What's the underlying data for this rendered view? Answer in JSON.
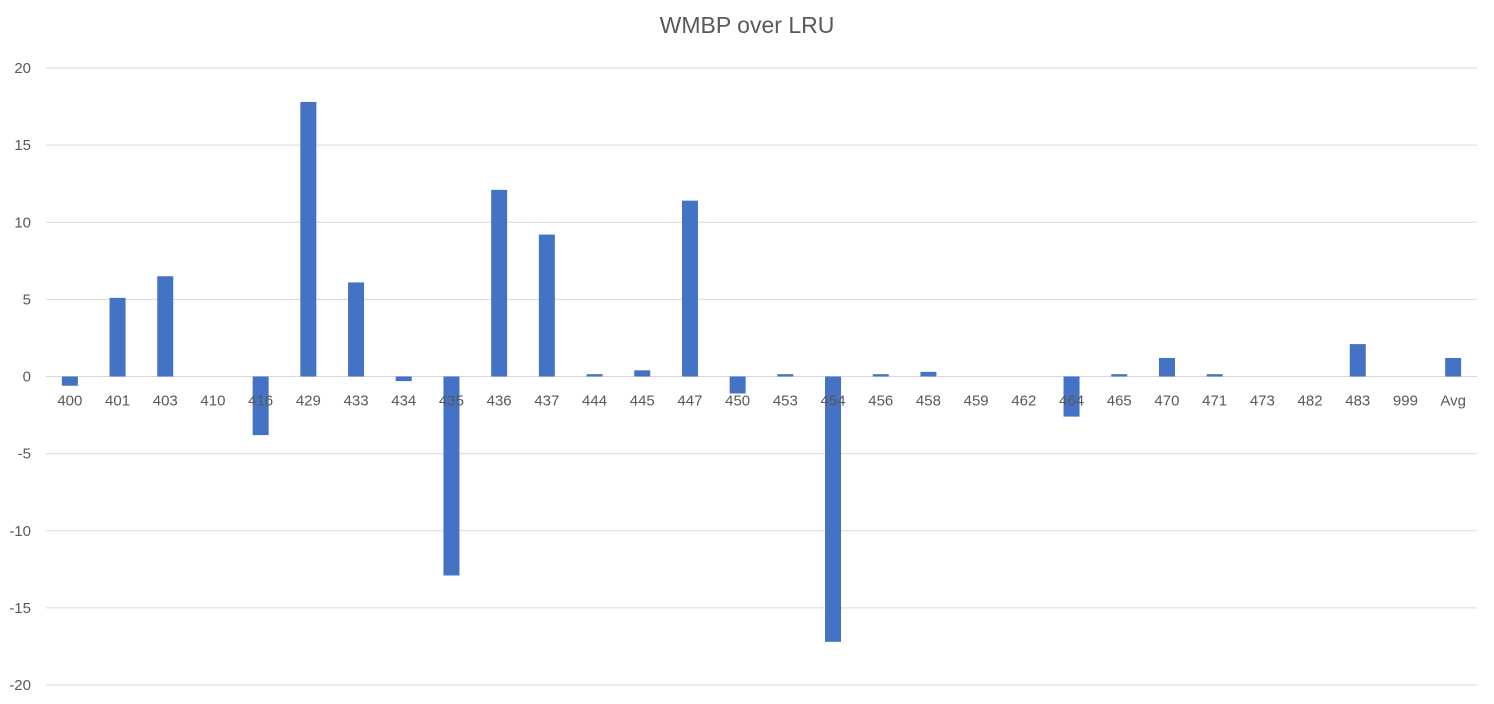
{
  "chart_data": {
    "type": "bar",
    "title": "WMBP over LRU",
    "xlabel": "",
    "ylabel": "",
    "ylim": [
      -20,
      20
    ],
    "yticks": [
      20,
      15,
      10,
      5,
      0,
      -5,
      -10,
      -15,
      -20
    ],
    "grid": true,
    "legend": "none",
    "bar_color": "#4472c4",
    "categories": [
      "400",
      "401",
      "403",
      "410",
      "416",
      "429",
      "433",
      "434",
      "435",
      "436",
      "437",
      "444",
      "445",
      "447",
      "450",
      "453",
      "454",
      "456",
      "458",
      "459",
      "462",
      "464",
      "465",
      "470",
      "471",
      "473",
      "482",
      "483",
      "999",
      "Avg"
    ],
    "values": [
      -0.6,
      5.1,
      6.5,
      0,
      -3.8,
      17.8,
      6.1,
      -0.3,
      -12.9,
      12.1,
      9.2,
      0.15,
      0.4,
      11.4,
      -1.1,
      0.15,
      -17.2,
      0.15,
      0.3,
      0,
      0,
      -2.6,
      0.15,
      1.2,
      0.15,
      0,
      0,
      2.1,
      0,
      1.2
    ]
  }
}
